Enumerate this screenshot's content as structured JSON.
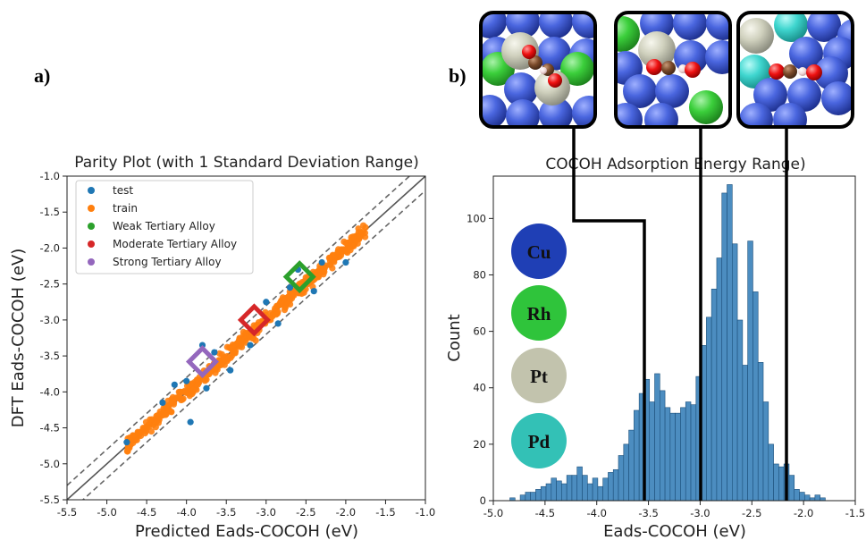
{
  "panels": {
    "a": "a)",
    "b": "b)"
  },
  "chart_data": [
    {
      "type": "scatter",
      "title": "Parity Plot (with 1 Standard Deviation Range)",
      "xlabel": "Predicted Eads-COCOH (eV)",
      "ylabel": "DFT Eads-COCOH (eV)",
      "xlim": [
        -5.5,
        -1.0
      ],
      "ylim": [
        -5.5,
        -1.0
      ],
      "ticks": [
        "-5.5",
        "-5.0",
        "-4.5",
        "-4.0",
        "-3.5",
        "-3.0",
        "-2.5",
        "-2.0",
        "-1.5",
        "-1.0"
      ],
      "tick_values": [
        -5.5,
        -5.0,
        -4.5,
        -4.0,
        -3.5,
        -3.0,
        -2.5,
        -2.0,
        -1.5,
        -1.0
      ],
      "std_dev": 0.2,
      "legend": [
        "test",
        "train",
        "Weak Tertiary Alloy",
        "Moderate Tertiary Alloy",
        "Strong Tertiary Alloy"
      ],
      "legend_position": "upper-left",
      "colors": {
        "test": "#1f77b4",
        "train": "#ff7f0e",
        "weak": "#2ca02c",
        "moderate": "#d62728",
        "strong": "#9467bd"
      },
      "highlighted": [
        {
          "name": "Weak Tertiary Alloy",
          "x": -2.58,
          "y": -2.4
        },
        {
          "name": "Moderate Tertiary Alloy",
          "x": -3.15,
          "y": -3.0
        },
        {
          "name": "Strong Tertiary Alloy",
          "x": -3.8,
          "y": -3.58
        }
      ],
      "test_points": [
        [
          -3.95,
          -4.42
        ],
        [
          -3.8,
          -3.35
        ],
        [
          -2.6,
          -2.3
        ],
        [
          -2.4,
          -2.6
        ],
        [
          -2.0,
          -2.2
        ],
        [
          -4.15,
          -3.9
        ],
        [
          -3.45,
          -3.7
        ],
        [
          -3.0,
          -2.75
        ],
        [
          -4.3,
          -4.15
        ],
        [
          -4.75,
          -4.7
        ],
        [
          -3.65,
          -3.45
        ],
        [
          -2.3,
          -2.2
        ],
        [
          -3.2,
          -3.35
        ],
        [
          -2.7,
          -2.55
        ],
        [
          -4.0,
          -3.85
        ],
        [
          -3.75,
          -3.95
        ],
        [
          -2.85,
          -3.05
        ]
      ],
      "train_range": [
        -4.75,
        -1.75
      ],
      "train_count": 520
    },
    {
      "type": "bar",
      "title": "COCOH Adsorption Energy Range)",
      "xlabel": "Eads-COCOH (eV)",
      "ylabel": "Count",
      "xlim": [
        -5.0,
        -1.5
      ],
      "ylim": [
        0,
        115
      ],
      "xticks": [
        "-5.0",
        "-4.5",
        "-4.0",
        "-3.5",
        "-3.0",
        "-2.5",
        "-2.0",
        "-1.5"
      ],
      "xtick_values": [
        -5.0,
        -4.5,
        -4.0,
        -3.5,
        -3.0,
        -2.5,
        -2.0,
        -1.5
      ],
      "yticks": [
        "0",
        "20",
        "40",
        "60",
        "80",
        "100"
      ],
      "ytick_values": [
        0,
        20,
        40,
        60,
        80,
        100
      ],
      "bin_start": -4.84,
      "bin_width": 0.05,
      "counts": [
        1,
        0,
        2,
        3,
        3,
        4,
        5,
        6,
        8,
        7,
        6,
        9,
        9,
        12,
        9,
        6,
        8,
        5,
        8,
        10,
        11,
        16,
        20,
        25,
        32,
        38,
        43,
        35,
        45,
        39,
        33,
        31,
        31,
        33,
        35,
        34,
        44,
        55,
        65,
        75,
        86,
        109,
        112,
        91,
        64,
        48,
        92,
        74,
        49,
        35,
        20,
        13,
        12,
        13,
        9,
        4,
        3,
        2,
        1,
        2,
        1
      ],
      "bar_color": "#4c8dc0",
      "vlines": [
        -3.55,
        -3.0,
        -2.15
      ],
      "elements": [
        "Cu",
        "Rh",
        "Pt",
        "Pd"
      ],
      "element_colors": [
        "#1f3fb5",
        "#2fc43b",
        "#c2c3ad",
        "#33c1b6"
      ]
    }
  ],
  "insets": [
    {
      "name": "weak-inset",
      "marker": "strong-structure"
    },
    {
      "name": "moderate-inset",
      "marker": "moderate-structure"
    },
    {
      "name": "strong-inset",
      "marker": "weak-structure"
    }
  ]
}
